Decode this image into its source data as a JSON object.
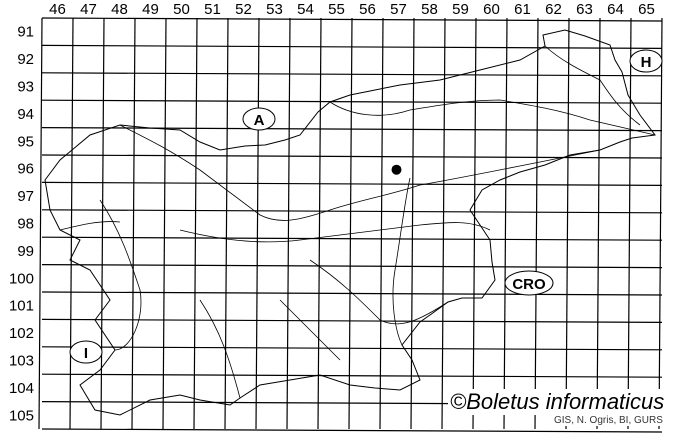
{
  "map": {
    "columns": [
      "46",
      "47",
      "48",
      "49",
      "50",
      "51",
      "52",
      "53",
      "54",
      "55",
      "56",
      "57",
      "58",
      "59",
      "60",
      "61",
      "62",
      "63",
      "64",
      "65"
    ],
    "rows": [
      "91",
      "92",
      "93",
      "94",
      "95",
      "96",
      "97",
      "98",
      "99",
      "100",
      "101",
      "102",
      "103",
      "104",
      "105"
    ],
    "country_labels": {
      "austria": "A",
      "hungary": "H",
      "croatia": "CRO",
      "italy": "I"
    },
    "records": [
      {
        "col": 57,
        "row": 96
      }
    ],
    "copyright": "©Boletus informaticus",
    "credit": "GIS, N. Ogris, BI, GURS",
    "colors": {
      "lines": "#000000",
      "background": "#ffffff",
      "record": "#000000"
    }
  }
}
